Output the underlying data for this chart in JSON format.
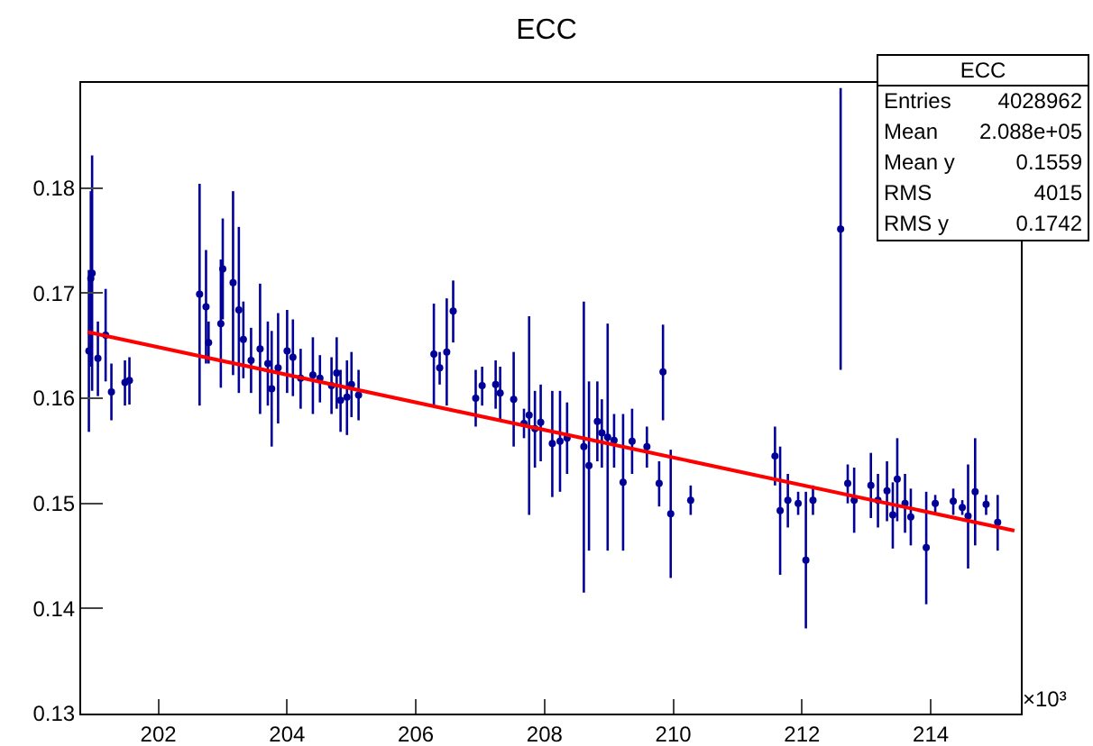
{
  "chart_data": {
    "type": "scatter",
    "title": "ECC",
    "xlim": [
      200.8,
      215.4
    ],
    "xticks": [
      202,
      204,
      206,
      208,
      210,
      212,
      214
    ],
    "ylim": [
      0.13,
      0.19
    ],
    "yticks": [
      0.13,
      0.14,
      0.15,
      0.16,
      0.17,
      0.18
    ],
    "grid": false,
    "annotations": [
      "×10³",
      "ECC",
      "Entries",
      "4028962",
      "Mean",
      "2.088e+05",
      "Mean y",
      "0.1559",
      "RMS",
      "4015",
      "RMS y",
      "0.1742"
    ],
    "series": [
      {
        "color": "#000099",
        "x": [
          200.92,
          200.95,
          200.97,
          201.06,
          201.18,
          201.27,
          201.48,
          201.55,
          202.64,
          202.74,
          202.78,
          202.97,
          203.0,
          203.16,
          203.25,
          203.32,
          203.44,
          203.58,
          203.7,
          203.76,
          203.86,
          204.0,
          204.09,
          204.21,
          204.4,
          204.51,
          204.69,
          204.77,
          204.83,
          204.93,
          205.0,
          205.11,
          206.28,
          206.37,
          206.48,
          206.58,
          206.93,
          207.03,
          207.24,
          207.31,
          207.52,
          207.68,
          207.76,
          207.85,
          207.94,
          208.12,
          208.24,
          208.35,
          208.61,
          208.69,
          208.82,
          208.89,
          208.98,
          209.08,
          209.22,
          209.36,
          209.59,
          209.78,
          209.84,
          209.96,
          210.27,
          211.58,
          211.66,
          211.78,
          211.94,
          212.06,
          212.17,
          212.6,
          212.71,
          212.81,
          213.07,
          213.18,
          213.32,
          213.41,
          213.48,
          213.6,
          213.69,
          213.93,
          214.07,
          214.35,
          214.49,
          214.58,
          214.69,
          214.86,
          215.04
        ],
        "values": [
          0.1645,
          0.1714,
          0.1719,
          0.1638,
          0.166,
          0.1606,
          0.1615,
          0.1617,
          0.1699,
          0.1687,
          0.1653,
          0.1671,
          0.1723,
          0.171,
          0.1684,
          0.1656,
          0.1636,
          0.1647,
          0.1633,
          0.1609,
          0.1629,
          0.1645,
          0.1639,
          0.1619,
          0.1622,
          0.1619,
          0.1612,
          0.1624,
          0.1598,
          0.1601,
          0.1613,
          0.1603,
          0.1642,
          0.1629,
          0.1644,
          0.1683,
          0.16,
          0.1612,
          0.1613,
          0.1605,
          0.1599,
          0.1576,
          0.1584,
          0.1571,
          0.1577,
          0.1557,
          0.1559,
          0.1562,
          0.1554,
          0.1536,
          0.1578,
          0.1567,
          0.1563,
          0.156,
          0.152,
          0.1559,
          0.1554,
          0.1519,
          0.1625,
          0.149,
          0.1503,
          0.1545,
          0.1493,
          0.1503,
          0.15,
          0.1446,
          0.1503,
          0.1761,
          0.1519,
          0.1503,
          0.1517,
          0.1503,
          0.1512,
          0.1489,
          0.1523,
          0.15,
          0.1487,
          0.1458,
          0.15,
          0.1502,
          0.1496,
          0.1488,
          0.1511,
          0.1499,
          0.1482
        ],
        "errors": [
          [
            0.1568,
            0.1722
          ],
          [
            0.163,
            0.1797
          ],
          [
            0.1607,
            0.1831
          ],
          [
            0.1602,
            0.1673
          ],
          [
            0.1616,
            0.1704
          ],
          [
            0.1579,
            0.1633
          ],
          [
            0.1593,
            0.1636
          ],
          [
            0.1594,
            0.1639
          ],
          [
            0.1593,
            0.1804
          ],
          [
            0.1633,
            0.1741
          ],
          [
            0.1633,
            0.1673
          ],
          [
            0.161,
            0.1732
          ],
          [
            0.1675,
            0.1771
          ],
          [
            0.1622,
            0.1797
          ],
          [
            0.1605,
            0.1763
          ],
          [
            0.1619,
            0.1692
          ],
          [
            0.1605,
            0.1667
          ],
          [
            0.1585,
            0.1709
          ],
          [
            0.1593,
            0.1673
          ],
          [
            0.1554,
            0.1664
          ],
          [
            0.1576,
            0.1681
          ],
          [
            0.1605,
            0.1684
          ],
          [
            0.1602,
            0.1675
          ],
          [
            0.159,
            0.1647
          ],
          [
            0.1585,
            0.1658
          ],
          [
            0.1596,
            0.1641
          ],
          [
            0.1585,
            0.1639
          ],
          [
            0.159,
            0.1658
          ],
          [
            0.1568,
            0.1627
          ],
          [
            0.1565,
            0.1636
          ],
          [
            0.1582,
            0.1644
          ],
          [
            0.1579,
            0.1627
          ],
          [
            0.1593,
            0.169
          ],
          [
            0.1613,
            0.1644
          ],
          [
            0.1593,
            0.1695
          ],
          [
            0.1653,
            0.1712
          ],
          [
            0.1573,
            0.1627
          ],
          [
            0.1593,
            0.163
          ],
          [
            0.159,
            0.1636
          ],
          [
            0.1579,
            0.163
          ],
          [
            0.1554,
            0.1644
          ],
          [
            0.1562,
            0.159
          ],
          [
            0.1489,
            0.1678
          ],
          [
            0.1534,
            0.1607
          ],
          [
            0.154,
            0.1613
          ],
          [
            0.1506,
            0.1607
          ],
          [
            0.1511,
            0.1607
          ],
          [
            0.1528,
            0.1596
          ],
          [
            0.1415,
            0.1692
          ],
          [
            0.1455,
            0.1616
          ],
          [
            0.154,
            0.1616
          ],
          [
            0.1534,
            0.1599
          ],
          [
            0.1455,
            0.1671
          ],
          [
            0.1534,
            0.1585
          ],
          [
            0.1455,
            0.1585
          ],
          [
            0.1528,
            0.159
          ],
          [
            0.1534,
            0.1573
          ],
          [
            0.1497,
            0.154
          ],
          [
            0.1579,
            0.167
          ],
          [
            0.1429,
            0.1551
          ],
          [
            0.1489,
            0.1517
          ],
          [
            0.1517,
            0.1573
          ],
          [
            0.1432,
            0.1554
          ],
          [
            0.1477,
            0.1528
          ],
          [
            0.1489,
            0.1511
          ],
          [
            0.1381,
            0.1511
          ],
          [
            0.1489,
            0.1517
          ],
          [
            0.1627,
            0.1895
          ],
          [
            0.15,
            0.1537
          ],
          [
            0.1472,
            0.1534
          ],
          [
            0.1486,
            0.1548
          ],
          [
            0.1477,
            0.1528
          ],
          [
            0.1483,
            0.154
          ],
          [
            0.1457,
            0.152
          ],
          [
            0.1483,
            0.1562
          ],
          [
            0.1472,
            0.1528
          ],
          [
            0.146,
            0.1514
          ],
          [
            0.1404,
            0.1511
          ],
          [
            0.1491,
            0.1508
          ],
          [
            0.1489,
            0.1514
          ],
          [
            0.1489,
            0.1503
          ],
          [
            0.1438,
            0.1537
          ],
          [
            0.146,
            0.1562
          ],
          [
            0.1489,
            0.1508
          ],
          [
            0.1455,
            0.1508
          ]
        ]
      },
      {
        "type": "line",
        "color": "#ff0000",
        "x": [
          200.9,
          215.3
        ],
        "values": [
          0.1663,
          0.1474
        ]
      }
    ]
  }
}
